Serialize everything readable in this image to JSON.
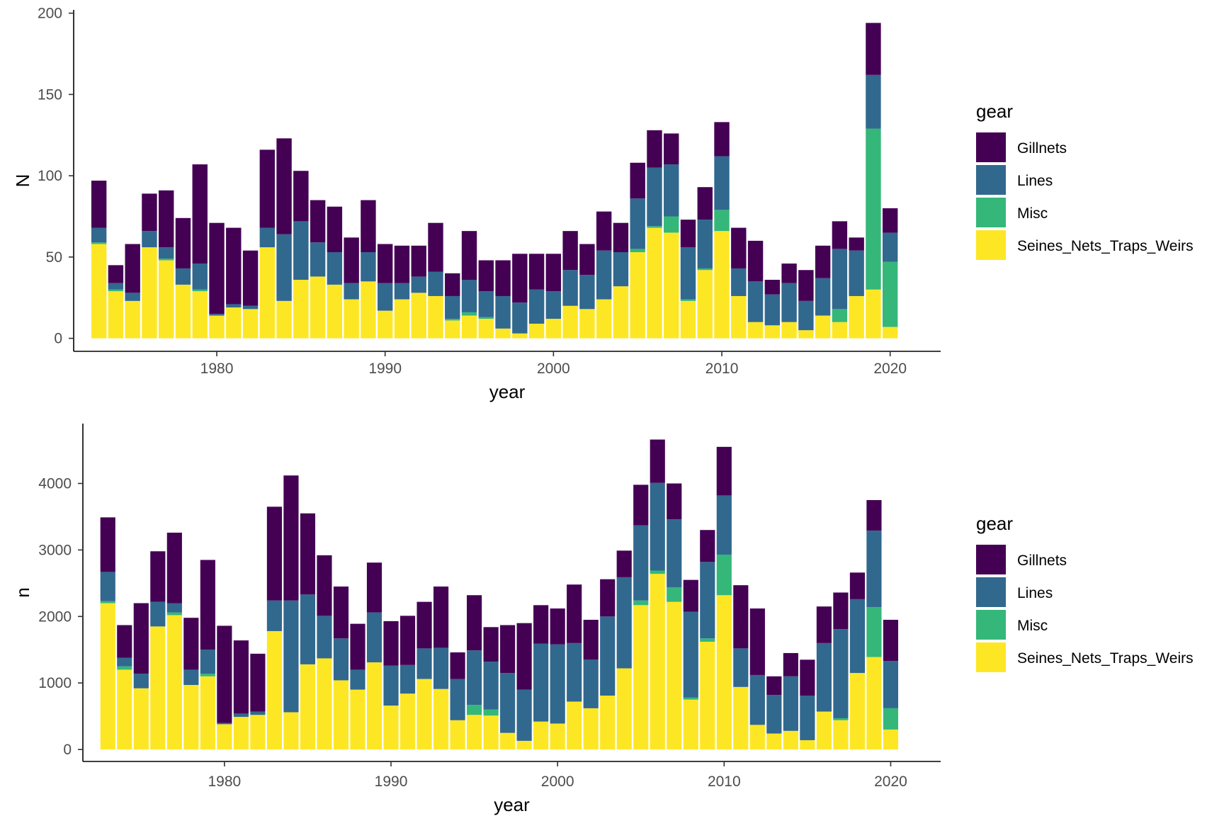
{
  "colors": {
    "Gillnets": "#440154",
    "Lines": "#31688E",
    "Misc": "#35B779",
    "Seines_Nets_Traps_Weirs": "#FDE725"
  },
  "chart_data": [
    {
      "type": "bar",
      "stacked": true,
      "xlabel": "year",
      "ylabel": "N",
      "xlim": [
        1971.5,
        2023
      ],
      "ylim": [
        -8,
        202
      ],
      "x_ticks": [
        1980,
        1990,
        2000,
        2010,
        2020
      ],
      "y_ticks": [
        0,
        50,
        100,
        150,
        200
      ],
      "legend": {
        "title": "gear",
        "position": "right"
      },
      "grid": false,
      "x": [
        1973,
        1974,
        1975,
        1976,
        1977,
        1978,
        1979,
        1980,
        1981,
        1982,
        1983,
        1984,
        1985,
        1986,
        1987,
        1988,
        1989,
        1990,
        1991,
        1992,
        1993,
        1994,
        1995,
        1996,
        1997,
        1998,
        1999,
        2000,
        2001,
        2002,
        2003,
        2004,
        2005,
        2006,
        2007,
        2008,
        2009,
        2010,
        2011,
        2012,
        2013,
        2014,
        2015,
        2016,
        2017,
        2018,
        2019,
        2020
      ],
      "series": [
        {
          "name": "Seines_Nets_Traps_Weirs",
          "values": [
            58,
            29,
            23,
            56,
            48,
            33,
            29,
            14,
            19,
            18,
            56,
            23,
            36,
            38,
            33,
            24,
            35,
            17,
            24,
            28,
            26,
            11,
            14,
            12,
            6,
            3,
            9,
            12,
            20,
            18,
            24,
            32,
            53,
            68,
            65,
            23,
            42,
            66,
            26,
            10,
            8,
            10,
            5,
            14,
            10,
            26,
            30,
            7
          ]
        },
        {
          "name": "Misc",
          "values": [
            1,
            1,
            0,
            0,
            1,
            0,
            1,
            0,
            0,
            0,
            0,
            0,
            0,
            0,
            0,
            0,
            0,
            0,
            0,
            0,
            0,
            1,
            2,
            1,
            0,
            0,
            0,
            0,
            0,
            0,
            0,
            0,
            2,
            1,
            10,
            1,
            1,
            13,
            0,
            0,
            0,
            0,
            0,
            0,
            8,
            0,
            99,
            40
          ]
        },
        {
          "name": "Lines",
          "values": [
            9,
            4,
            5,
            10,
            7,
            10,
            16,
            1,
            2,
            2,
            12,
            41,
            36,
            21,
            20,
            10,
            18,
            17,
            10,
            10,
            15,
            14,
            20,
            16,
            20,
            19,
            21,
            17,
            22,
            21,
            30,
            21,
            31,
            36,
            32,
            32,
            30,
            33,
            17,
            25,
            19,
            24,
            18,
            23,
            37,
            28,
            33,
            18
          ]
        },
        {
          "name": "Gillnets",
          "values": [
            29,
            11,
            30,
            23,
            35,
            31,
            61,
            56,
            47,
            34,
            48,
            59,
            31,
            26,
            28,
            28,
            32,
            24,
            23,
            19,
            30,
            14,
            30,
            19,
            22,
            30,
            22,
            23,
            24,
            19,
            24,
            18,
            22,
            23,
            19,
            17,
            20,
            21,
            25,
            25,
            9,
            12,
            19,
            20,
            17,
            8,
            32,
            15
          ]
        }
      ]
    },
    {
      "type": "bar",
      "stacked": true,
      "xlabel": "year",
      "ylabel": "n",
      "xlim": [
        1971.5,
        2023
      ],
      "ylim": [
        -180,
        4900
      ],
      "x_ticks": [
        1980,
        1990,
        2000,
        2010,
        2020
      ],
      "y_ticks": [
        0,
        1000,
        2000,
        3000,
        4000
      ],
      "legend": {
        "title": "gear",
        "position": "right"
      },
      "grid": false,
      "x": [
        1973,
        1974,
        1975,
        1976,
        1977,
        1978,
        1979,
        1980,
        1981,
        1982,
        1983,
        1984,
        1985,
        1986,
        1987,
        1988,
        1989,
        1990,
        1991,
        1992,
        1993,
        1994,
        1995,
        1996,
        1997,
        1998,
        1999,
        2000,
        2001,
        2002,
        2003,
        2004,
        2005,
        2006,
        2007,
        2008,
        2009,
        2010,
        2011,
        2012,
        2013,
        2014,
        2015,
        2016,
        2017,
        2018,
        2019,
        2020
      ],
      "series": [
        {
          "name": "Seines_Nets_Traps_Weirs",
          "values": [
            2200,
            1200,
            920,
            1850,
            2020,
            970,
            1100,
            380,
            490,
            520,
            1780,
            560,
            1280,
            1370,
            1040,
            900,
            1310,
            660,
            840,
            1060,
            910,
            440,
            520,
            510,
            250,
            130,
            420,
            390,
            720,
            620,
            810,
            1220,
            2170,
            2640,
            2220,
            750,
            1620,
            2320,
            940,
            370,
            240,
            280,
            140,
            570,
            440,
            1150,
            1390,
            300
          ]
        },
        {
          "name": "Misc",
          "values": [
            30,
            50,
            0,
            0,
            40,
            0,
            40,
            0,
            0,
            0,
            0,
            0,
            0,
            0,
            0,
            0,
            0,
            0,
            0,
            0,
            0,
            0,
            150,
            90,
            0,
            0,
            0,
            0,
            0,
            0,
            0,
            0,
            70,
            50,
            220,
            30,
            50,
            610,
            0,
            0,
            0,
            0,
            0,
            0,
            30,
            0,
            750,
            320
          ]
        },
        {
          "name": "Lines",
          "values": [
            440,
            130,
            220,
            370,
            140,
            230,
            360,
            20,
            50,
            50,
            460,
            1680,
            1050,
            640,
            630,
            300,
            750,
            600,
            430,
            460,
            620,
            620,
            820,
            720,
            900,
            770,
            1170,
            1190,
            880,
            730,
            1190,
            1370,
            1130,
            1320,
            1020,
            1290,
            1150,
            890,
            580,
            750,
            580,
            820,
            670,
            1030,
            1340,
            1110,
            1150,
            710
          ]
        },
        {
          "name": "Gillnets",
          "values": [
            820,
            490,
            1060,
            760,
            1060,
            780,
            1350,
            1460,
            1100,
            870,
            1410,
            1880,
            1220,
            910,
            780,
            690,
            750,
            670,
            740,
            700,
            920,
            400,
            830,
            520,
            720,
            1000,
            580,
            540,
            880,
            600,
            560,
            400,
            610,
            650,
            540,
            480,
            480,
            730,
            950,
            1000,
            280,
            350,
            540,
            550,
            550,
            400,
            460,
            620
          ]
        }
      ]
    }
  ]
}
